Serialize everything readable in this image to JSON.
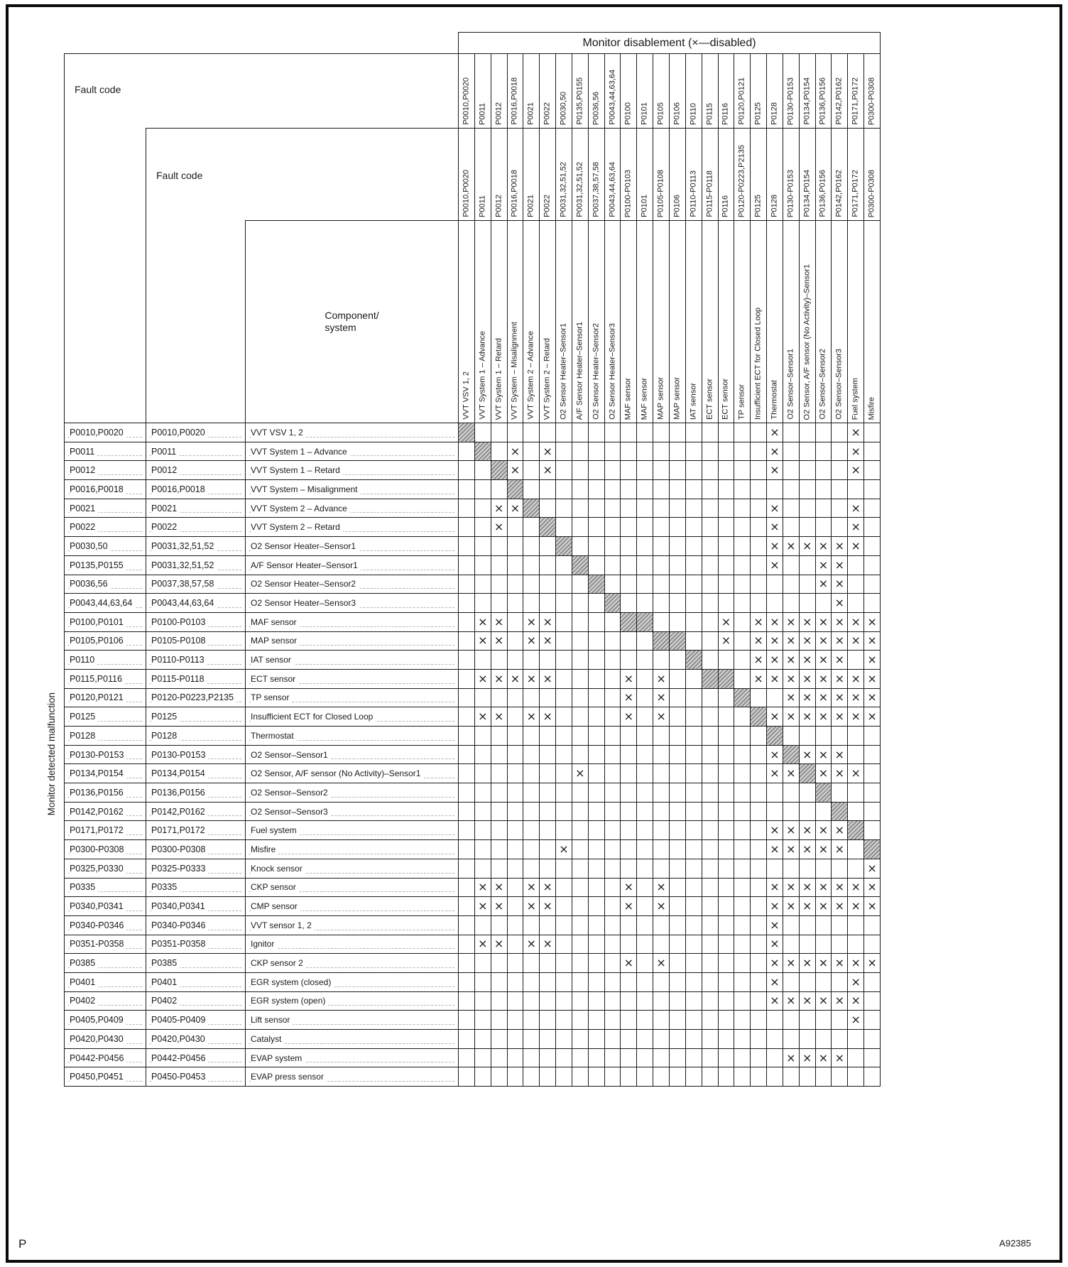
{
  "colors": {
    "ink": "#1a1a1a",
    "paper": "#ffffff",
    "hatch_a": "#8f8f8f",
    "hatch_b": "#d4d4d4"
  },
  "page": {
    "footer_left": "P",
    "footer_right": "A92385"
  },
  "table": {
    "title": "Monitor disablement (×—disabled)",
    "row_axis_label": "Monitor detected malfunction",
    "col1_header": "Fault code",
    "col2_header": "Fault code",
    "col3_header": "Component/\nsystem",
    "x_symbol": "×",
    "columns": [
      {
        "code1": "P0010,P0020",
        "code2": "P0010,P0020",
        "component": "VVT VSV 1, 2"
      },
      {
        "code1": "P0011",
        "code2": "P0011",
        "component": "VVT System 1 – Advance"
      },
      {
        "code1": "P0012",
        "code2": "P0012",
        "component": "VVT System 1 – Retard"
      },
      {
        "code1": "P0016,P0018",
        "code2": "P0016,P0018",
        "component": "VVT System – Misalignment"
      },
      {
        "code1": "P0021",
        "code2": "P0021",
        "component": "VVT System 2 – Advance"
      },
      {
        "code1": "P0022",
        "code2": "P0022",
        "component": "VVT System 2 – Retard"
      },
      {
        "code1": "P0030,50",
        "code2": "P0031,32,51,52",
        "component": "O2 Sensor Heater–Sensor1"
      },
      {
        "code1": "P0135,P0155",
        "code2": "P0031,32,51,52",
        "component": "A/F Sensor Heater–Sensor1"
      },
      {
        "code1": "P0036,56",
        "code2": "P0037,38,57,58",
        "component": "O2 Sensor Heater–Sensor2"
      },
      {
        "code1": "P0043,44,63,64",
        "code2": "P0043,44,63,64",
        "component": "O2 Sensor Heater–Sensor3"
      },
      {
        "code1": "P0100",
        "code2": "P0100-P0103",
        "component": "MAF sensor"
      },
      {
        "code1": "P0101",
        "code2": "P0101",
        "component": "MAF sensor"
      },
      {
        "code1": "P0105",
        "code2": "P0105-P0108",
        "component": "MAP sensor"
      },
      {
        "code1": "P0106",
        "code2": "P0106",
        "component": "MAP sensor"
      },
      {
        "code1": "P0110",
        "code2": "P0110-P0113",
        "component": "IAT sensor"
      },
      {
        "code1": "P0115",
        "code2": "P0115-P0118",
        "component": "ECT sensor"
      },
      {
        "code1": "P0116",
        "code2": "P0116",
        "component": "ECT sensor"
      },
      {
        "code1": "P0120,P0121",
        "code2": "P0120-P0223,P2135",
        "component": "TP sensor"
      },
      {
        "code1": "P0125",
        "code2": "P0125",
        "component": "Insufficient ECT for Closed Loop"
      },
      {
        "code1": "P0128",
        "code2": "P0128",
        "component": "Thermostat"
      },
      {
        "code1": "P0130-P0153",
        "code2": "P0130-P0153",
        "component": "O2 Sensor–Sensor1"
      },
      {
        "code1": "P0134,P0154",
        "code2": "P0134,P0154",
        "component": "O2 Sensor, A/F sensor (No Activity)–Sensor1"
      },
      {
        "code1": "P0136,P0156",
        "code2": "P0136,P0156",
        "component": "O2 Sensor–Sensor2"
      },
      {
        "code1": "P0142,P0162",
        "code2": "P0142,P0162",
        "component": "O2 Sensor–Sensor3"
      },
      {
        "code1": "P0171,P0172",
        "code2": "P0171,P0172",
        "component": "Fuel system"
      },
      {
        "code1": "P0300-P0308",
        "code2": "P0300-P0308",
        "component": "Misfire"
      }
    ],
    "rows": [
      {
        "code1": "P0010,P0020",
        "code2": "P0010,P0020",
        "component": "VVT VSV 1, 2",
        "diag": [
          1
        ],
        "disabled": [
          20,
          25
        ]
      },
      {
        "code1": "P0011",
        "code2": "P0011",
        "component": "VVT System 1 – Advance",
        "diag": [
          2
        ],
        "disabled": [
          4,
          6,
          20,
          25
        ]
      },
      {
        "code1": "P0012",
        "code2": "P0012",
        "component": "VVT System 1 – Retard",
        "diag": [
          3
        ],
        "disabled": [
          4,
          6,
          20,
          25
        ]
      },
      {
        "code1": "P0016,P0018",
        "code2": "P0016,P0018",
        "component": "VVT System – Misalignment",
        "diag": [
          4
        ],
        "disabled": []
      },
      {
        "code1": "P0021",
        "code2": "P0021",
        "component": "VVT System 2 – Advance",
        "diag": [
          5
        ],
        "disabled": [
          3,
          4,
          20,
          25
        ]
      },
      {
        "code1": "P0022",
        "code2": "P0022",
        "component": "VVT System 2 – Retard",
        "diag": [
          6
        ],
        "disabled": [
          3,
          20,
          25
        ]
      },
      {
        "code1": "P0030,50",
        "code2": "P0031,32,51,52",
        "component": "O2 Sensor Heater–Sensor1",
        "diag": [
          7
        ],
        "disabled": [
          20,
          21,
          22,
          23,
          24,
          25
        ]
      },
      {
        "code1": "P0135,P0155",
        "code2": "P0031,32,51,52",
        "component": "A/F Sensor Heater–Sensor1",
        "diag": [
          8
        ],
        "disabled": [
          20,
          23,
          24
        ]
      },
      {
        "code1": "P0036,56",
        "code2": "P0037,38,57,58",
        "component": "O2 Sensor Heater–Sensor2",
        "diag": [
          9
        ],
        "disabled": [
          23,
          24
        ]
      },
      {
        "code1": "P0043,44,63,64",
        "code2": "P0043,44,63,64",
        "component": "O2 Sensor Heater–Sensor3",
        "diag": [
          10
        ],
        "disabled": [
          24
        ]
      },
      {
        "code1": "P0100,P0101",
        "code2": "P0100-P0103",
        "component": "MAF sensor",
        "diag": [
          11,
          12
        ],
        "disabled": [
          2,
          3,
          5,
          6,
          17,
          19,
          20,
          21,
          22,
          23,
          24,
          25,
          26
        ]
      },
      {
        "code1": "P0105,P0106",
        "code2": "P0105-P0108",
        "component": "MAP sensor",
        "diag": [
          13,
          14
        ],
        "disabled": [
          2,
          3,
          5,
          6,
          17,
          19,
          20,
          21,
          22,
          23,
          24,
          25,
          26
        ]
      },
      {
        "code1": "P0110",
        "code2": "P0110-P0113",
        "component": "IAT sensor",
        "diag": [
          15
        ],
        "disabled": [
          19,
          20,
          21,
          22,
          23,
          24,
          26
        ]
      },
      {
        "code1": "P0115,P0116",
        "code2": "P0115-P0118",
        "component": "ECT sensor",
        "diag": [
          16,
          17
        ],
        "disabled": [
          2,
          3,
          4,
          5,
          6,
          11,
          13,
          19,
          20,
          21,
          22,
          23,
          24,
          25,
          26
        ]
      },
      {
        "code1": "P0120,P0121",
        "code2": "P0120-P0223,P2135",
        "component": "TP sensor",
        "diag": [
          18
        ],
        "disabled": [
          11,
          13,
          21,
          22,
          23,
          24,
          25,
          26
        ]
      },
      {
        "code1": "P0125",
        "code2": "P0125",
        "component": "Insufficient ECT for Closed Loop",
        "diag": [
          19
        ],
        "disabled": [
          2,
          3,
          5,
          6,
          11,
          13,
          20,
          21,
          22,
          23,
          24,
          25,
          26
        ]
      },
      {
        "code1": "P0128",
        "code2": "P0128",
        "component": "Thermostat",
        "diag": [
          20
        ],
        "disabled": []
      },
      {
        "code1": "P0130-P0153",
        "code2": "P0130-P0153",
        "component": "O2 Sensor–Sensor1",
        "diag": [
          21
        ],
        "disabled": [
          20,
          22,
          23,
          24
        ]
      },
      {
        "code1": "P0134,P0154",
        "code2": "P0134,P0154",
        "component": "O2 Sensor, A/F sensor (No Activity)–Sensor1",
        "diag": [
          22
        ],
        "disabled": [
          8,
          20,
          21,
          23,
          24,
          25
        ]
      },
      {
        "code1": "P0136,P0156",
        "code2": "P0136,P0156",
        "component": "O2 Sensor–Sensor2",
        "diag": [
          23
        ],
        "disabled": []
      },
      {
        "code1": "P0142,P0162",
        "code2": "P0142,P0162",
        "component": "O2 Sensor–Sensor3",
        "diag": [
          24
        ],
        "disabled": []
      },
      {
        "code1": "P0171,P0172",
        "code2": "P0171,P0172",
        "component": "Fuel system",
        "diag": [
          25
        ],
        "disabled": [
          20,
          21,
          22,
          23,
          24
        ]
      },
      {
        "code1": "P0300-P0308",
        "code2": "P0300-P0308",
        "component": "Misfire",
        "diag": [
          26
        ],
        "disabled": [
          7,
          20,
          21,
          22,
          23,
          24
        ]
      },
      {
        "code1": "P0325,P0330",
        "code2": "P0325-P0333",
        "component": "Knock sensor",
        "diag": [],
        "disabled": [
          26
        ]
      },
      {
        "code1": "P0335",
        "code2": "P0335",
        "component": "CKP sensor",
        "diag": [],
        "disabled": [
          2,
          3,
          5,
          6,
          11,
          13,
          20,
          21,
          22,
          23,
          24,
          25,
          26
        ]
      },
      {
        "code1": "P0340,P0341",
        "code2": "P0340,P0341",
        "component": "CMP sensor",
        "diag": [],
        "disabled": [
          2,
          3,
          5,
          6,
          11,
          13,
          20,
          21,
          22,
          23,
          24,
          25,
          26
        ]
      },
      {
        "code1": "P0340-P0346",
        "code2": "P0340-P0346",
        "component": "VVT sensor 1, 2",
        "diag": [],
        "disabled": [
          20
        ]
      },
      {
        "code1": "P0351-P0358",
        "code2": "P0351-P0358",
        "component": "Ignitor",
        "diag": [],
        "disabled": [
          2,
          3,
          5,
          6,
          20
        ]
      },
      {
        "code1": "P0385",
        "code2": "P0385",
        "component": "CKP sensor 2",
        "diag": [],
        "disabled": [
          11,
          13,
          20,
          21,
          22,
          23,
          24,
          25,
          26
        ]
      },
      {
        "code1": "P0401",
        "code2": "P0401",
        "component": "EGR system (closed)",
        "diag": [],
        "disabled": [
          20,
          25
        ]
      },
      {
        "code1": "P0402",
        "code2": "P0402",
        "component": "EGR system (open)",
        "diag": [],
        "disabled": [
          20,
          21,
          22,
          23,
          24,
          25
        ]
      },
      {
        "code1": "P0405,P0409",
        "code2": "P0405-P0409",
        "component": "Lift sensor",
        "diag": [],
        "disabled": [
          25
        ]
      },
      {
        "code1": "P0420,P0430",
        "code2": "P0420,P0430",
        "component": "Catalyst",
        "diag": [],
        "disabled": []
      },
      {
        "code1": "P0442-P0456",
        "code2": "P0442-P0456",
        "component": "EVAP system",
        "diag": [],
        "disabled": [
          21,
          22,
          23,
          24
        ]
      },
      {
        "code1": "P0450,P0451",
        "code2": "P0450-P0453",
        "component": "EVAP press sensor",
        "diag": [],
        "disabled": []
      }
    ]
  }
}
